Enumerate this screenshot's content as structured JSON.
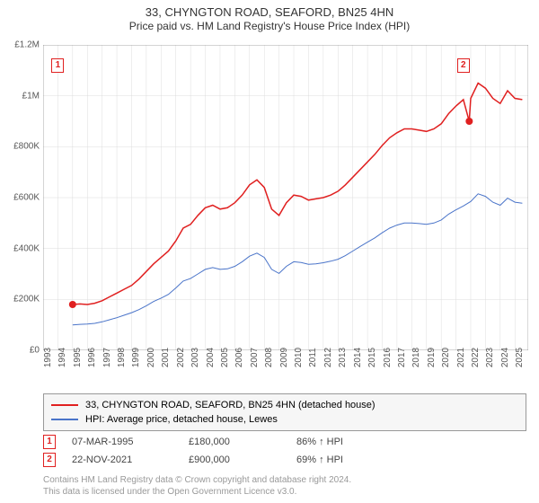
{
  "title": "33, CHYNGTON ROAD, SEAFORD, BN25 4HN",
  "subtitle": "Price paid vs. HM Land Registry's House Price Index (HPI)",
  "chart": {
    "type": "line",
    "background_color": "#ffffff",
    "grid_color": "#dddddd",
    "grid_on": true,
    "xlim": [
      1993,
      2025.9
    ],
    "ylim": [
      0,
      1200000
    ],
    "ytick_step": 200000,
    "yticks": [
      "£0",
      "£200K",
      "£400K",
      "£600K",
      "£800K",
      "£1M",
      "£1.2M"
    ],
    "xticks": [
      1993,
      1994,
      1995,
      1996,
      1997,
      1998,
      1999,
      2000,
      2001,
      2002,
      2003,
      2004,
      2005,
      2006,
      2007,
      2008,
      2009,
      2010,
      2011,
      2012,
      2013,
      2014,
      2015,
      2016,
      2017,
      2018,
      2019,
      2020,
      2021,
      2022,
      2023,
      2024,
      2025
    ],
    "label_fontsize": 10,
    "axis_color": "#666666",
    "series": [
      {
        "name": "33, CHYNGTON ROAD, SEAFORD, BN25 4HN (detached house)",
        "color": "#e02020",
        "line_width": 1.5,
        "data": [
          [
            1995,
            180
          ],
          [
            1995.5,
            182
          ],
          [
            1996,
            180
          ],
          [
            1996.5,
            185
          ],
          [
            1997,
            195
          ],
          [
            1997.5,
            210
          ],
          [
            1998,
            225
          ],
          [
            1998.5,
            240
          ],
          [
            1999,
            255
          ],
          [
            1999.5,
            280
          ],
          [
            2000,
            310
          ],
          [
            2000.5,
            340
          ],
          [
            2001,
            365
          ],
          [
            2001.5,
            390
          ],
          [
            2002,
            430
          ],
          [
            2002.5,
            480
          ],
          [
            2003,
            495
          ],
          [
            2003.5,
            530
          ],
          [
            2004,
            560
          ],
          [
            2004.5,
            570
          ],
          [
            2005,
            555
          ],
          [
            2005.5,
            560
          ],
          [
            2006,
            580
          ],
          [
            2006.5,
            610
          ],
          [
            2007,
            650
          ],
          [
            2007.5,
            670
          ],
          [
            2008,
            640
          ],
          [
            2008.5,
            555
          ],
          [
            2009,
            530
          ],
          [
            2009.5,
            580
          ],
          [
            2010,
            610
          ],
          [
            2010.5,
            605
          ],
          [
            2011,
            590
          ],
          [
            2011.5,
            595
          ],
          [
            2012,
            600
          ],
          [
            2012.5,
            610
          ],
          [
            2013,
            625
          ],
          [
            2013.5,
            650
          ],
          [
            2014,
            680
          ],
          [
            2014.5,
            710
          ],
          [
            2015,
            740
          ],
          [
            2015.5,
            770
          ],
          [
            2016,
            805
          ],
          [
            2016.5,
            835
          ],
          [
            2017,
            855
          ],
          [
            2017.5,
            870
          ],
          [
            2018,
            870
          ],
          [
            2018.5,
            865
          ],
          [
            2019,
            860
          ],
          [
            2019.5,
            870
          ],
          [
            2020,
            890
          ],
          [
            2020.5,
            930
          ],
          [
            2021,
            960
          ],
          [
            2021.5,
            985
          ],
          [
            2021.9,
            900
          ],
          [
            2022,
            990
          ],
          [
            2022.5,
            1050
          ],
          [
            2023,
            1030
          ],
          [
            2023.5,
            990
          ],
          [
            2024,
            970
          ],
          [
            2024.5,
            1020
          ],
          [
            2025,
            990
          ],
          [
            2025.5,
            985
          ]
        ]
      },
      {
        "name": "HPI: Average price, detached house, Lewes",
        "color": "#4a74c9",
        "line_width": 1,
        "data": [
          [
            1995,
            100
          ],
          [
            1995.5,
            102
          ],
          [
            1996,
            103
          ],
          [
            1996.5,
            106
          ],
          [
            1997,
            112
          ],
          [
            1997.5,
            120
          ],
          [
            1998,
            128
          ],
          [
            1998.5,
            138
          ],
          [
            1999,
            148
          ],
          [
            1999.5,
            160
          ],
          [
            2000,
            175
          ],
          [
            2000.5,
            192
          ],
          [
            2001,
            205
          ],
          [
            2001.5,
            220
          ],
          [
            2002,
            245
          ],
          [
            2002.5,
            272
          ],
          [
            2003,
            282
          ],
          [
            2003.5,
            300
          ],
          [
            2004,
            318
          ],
          [
            2004.5,
            325
          ],
          [
            2005,
            318
          ],
          [
            2005.5,
            320
          ],
          [
            2006,
            330
          ],
          [
            2006.5,
            348
          ],
          [
            2007,
            370
          ],
          [
            2007.5,
            382
          ],
          [
            2008,
            365
          ],
          [
            2008.5,
            318
          ],
          [
            2009,
            302
          ],
          [
            2009.5,
            330
          ],
          [
            2010,
            348
          ],
          [
            2010.5,
            345
          ],
          [
            2011,
            338
          ],
          [
            2011.5,
            340
          ],
          [
            2012,
            344
          ],
          [
            2012.5,
            350
          ],
          [
            2013,
            358
          ],
          [
            2013.5,
            372
          ],
          [
            2014,
            390
          ],
          [
            2014.5,
            408
          ],
          [
            2015,
            425
          ],
          [
            2015.5,
            442
          ],
          [
            2016,
            462
          ],
          [
            2016.5,
            480
          ],
          [
            2017,
            492
          ],
          [
            2017.5,
            500
          ],
          [
            2018,
            500
          ],
          [
            2018.5,
            498
          ],
          [
            2019,
            495
          ],
          [
            2019.5,
            500
          ],
          [
            2020,
            512
          ],
          [
            2020.5,
            535
          ],
          [
            2021,
            552
          ],
          [
            2021.5,
            567
          ],
          [
            2022,
            585
          ],
          [
            2022.5,
            615
          ],
          [
            2023,
            605
          ],
          [
            2023.5,
            582
          ],
          [
            2024,
            570
          ],
          [
            2024.5,
            598
          ],
          [
            2025,
            582
          ],
          [
            2025.5,
            578
          ]
        ]
      }
    ],
    "markers": [
      {
        "label": "1",
        "x": 1995,
        "y": 180,
        "color": "#e02020",
        "box_x": 1994,
        "box_y": 1120
      },
      {
        "label": "2",
        "x": 2021.9,
        "y": 900,
        "color": "#e02020",
        "box_x": 2021.5,
        "box_y": 1120
      }
    ]
  },
  "legend": {
    "border_color": "#999999",
    "background": "#f6f6f6",
    "fontsize": 11,
    "items": [
      {
        "color": "#e02020",
        "label": "33, CHYNGTON ROAD, SEAFORD, BN25 4HN (detached house)"
      },
      {
        "color": "#4a74c9",
        "label": "HPI: Average price, detached house, Lewes"
      }
    ]
  },
  "transactions": [
    {
      "marker": "1",
      "color": "#e02020",
      "date": "07-MAR-1995",
      "price": "£180,000",
      "delta": "86% ↑ HPI"
    },
    {
      "marker": "2",
      "color": "#e02020",
      "date": "22-NOV-2021",
      "price": "£900,000",
      "delta": "69% ↑ HPI"
    }
  ],
  "footer_line1": "Contains HM Land Registry data © Crown copyright and database right 2024.",
  "footer_line2": "This data is licensed under the Open Government Licence v3.0."
}
